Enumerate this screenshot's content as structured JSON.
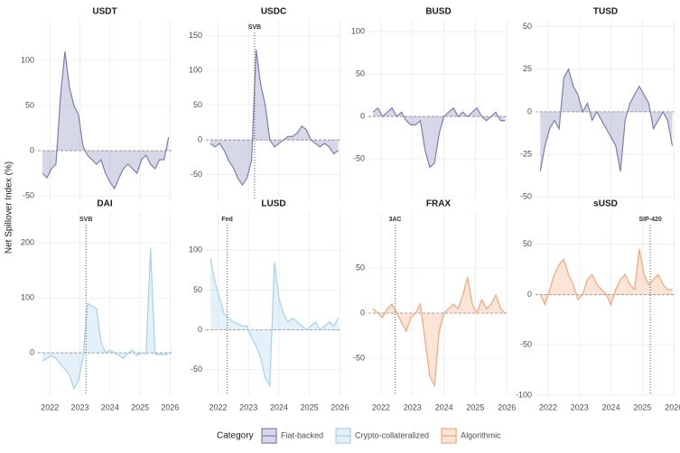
{
  "y_label": "Net Spillover Index (%)",
  "legend": {
    "title": "Category",
    "entries": [
      {
        "name": "Fiat-backed",
        "color": "#7a7fb0"
      },
      {
        "name": "Crypto-collateralized",
        "color": "#a6d2ea"
      },
      {
        "name": "Algorithmic",
        "color": "#f4a67a"
      }
    ]
  },
  "chart_data": [
    {
      "type": "line",
      "title": "USDT",
      "color": "#7a7fb0",
      "x": [
        2021.75,
        2021.9,
        2022.05,
        2022.2,
        2022.35,
        2022.5,
        2022.65,
        2022.8,
        2022.95,
        2023.1,
        2023.25,
        2023.4,
        2023.55,
        2023.7,
        2023.85,
        2024.0,
        2024.15,
        2024.3,
        2024.45,
        2024.6,
        2024.75,
        2024.9,
        2025.05,
        2025.2,
        2025.35,
        2025.5,
        2025.65,
        2025.8,
        2025.95
      ],
      "values": [
        -25,
        -30,
        -20,
        -15,
        60,
        110,
        70,
        50,
        40,
        5,
        -5,
        -10,
        -15,
        -10,
        -25,
        -35,
        -42,
        -30,
        -20,
        -15,
        -20,
        -25,
        -10,
        -5,
        -15,
        -20,
        -10,
        -10,
        15
      ],
      "xlim": [
        2021.6,
        2026.05
      ],
      "xticks": [
        2022,
        2023,
        2024,
        2025,
        2026
      ],
      "ylim": [
        -55,
        145
      ],
      "yticks": [
        -50,
        0,
        50,
        100
      ]
    },
    {
      "type": "line",
      "title": "USDC",
      "color": "#7a7fb0",
      "x": [
        2021.75,
        2021.9,
        2022.05,
        2022.2,
        2022.35,
        2022.5,
        2022.65,
        2022.8,
        2022.95,
        2023.1,
        2023.25,
        2023.4,
        2023.55,
        2023.7,
        2023.85,
        2024.0,
        2024.15,
        2024.3,
        2024.45,
        2024.6,
        2024.75,
        2024.9,
        2025.05,
        2025.2,
        2025.35,
        2025.5,
        2025.65,
        2025.8,
        2025.95
      ],
      "values": [
        -5,
        -10,
        -5,
        -15,
        -30,
        -40,
        -55,
        -65,
        -55,
        -30,
        130,
        80,
        50,
        0,
        -10,
        -5,
        0,
        5,
        5,
        10,
        20,
        15,
        0,
        -5,
        -10,
        -5,
        -10,
        -20,
        -15
      ],
      "xlim": [
        2021.6,
        2026.05
      ],
      "xticks": [
        2022,
        2023,
        2024,
        2025,
        2026
      ],
      "ylim": [
        -87,
        173
      ],
      "yticks": [
        -50,
        0,
        50,
        100,
        150
      ],
      "annotation": {
        "x": 2023.2,
        "label": "SVB"
      }
    },
    {
      "type": "line",
      "title": "BUSD",
      "color": "#7a7fb0",
      "x": [
        2021.75,
        2021.9,
        2022.05,
        2022.2,
        2022.35,
        2022.5,
        2022.65,
        2022.8,
        2022.95,
        2023.1,
        2023.25,
        2023.4,
        2023.55,
        2023.7,
        2023.85,
        2024.0,
        2024.15,
        2024.3,
        2024.45,
        2024.6,
        2024.75,
        2024.9,
        2025.05,
        2025.2,
        2025.35,
        2025.5,
        2025.65,
        2025.8,
        2025.95
      ],
      "values": [
        5,
        10,
        0,
        5,
        10,
        0,
        5,
        -5,
        -10,
        -10,
        -5,
        -40,
        -60,
        -55,
        -20,
        0,
        5,
        10,
        0,
        5,
        0,
        5,
        10,
        0,
        -5,
        0,
        5,
        -5,
        -5
      ],
      "xlim": [
        2021.6,
        2026.05
      ],
      "xticks": [
        2022,
        2023,
        2024,
        2025,
        2026
      ],
      "ylim": [
        -99,
        114
      ],
      "yticks": [
        -50,
        0,
        50,
        100
      ]
    },
    {
      "type": "line",
      "title": "TUSD",
      "color": "#7a7fb0",
      "x": [
        2021.75,
        2021.9,
        2022.05,
        2022.2,
        2022.35,
        2022.5,
        2022.65,
        2022.8,
        2022.95,
        2023.1,
        2023.25,
        2023.4,
        2023.55,
        2023.7,
        2023.85,
        2024.0,
        2024.15,
        2024.3,
        2024.45,
        2024.6,
        2024.75,
        2024.9,
        2025.05,
        2025.2,
        2025.35,
        2025.5,
        2025.65,
        2025.8,
        2025.95
      ],
      "values": [
        -35,
        -20,
        -10,
        -5,
        -10,
        20,
        25,
        15,
        10,
        0,
        5,
        -5,
        0,
        -5,
        -10,
        -15,
        -20,
        -35,
        -5,
        5,
        10,
        15,
        10,
        5,
        -10,
        -5,
        0,
        -5,
        -20
      ],
      "xlim": [
        2021.6,
        2026.05
      ],
      "xticks": [
        2022,
        2023,
        2024,
        2025,
        2026
      ],
      "ylim": [
        -52,
        54
      ],
      "yticks": [
        -50,
        -25,
        0,
        25,
        50
      ]
    },
    {
      "type": "line",
      "title": "DAI",
      "color": "#a6d2ea",
      "x": [
        2021.75,
        2021.9,
        2022.05,
        2022.2,
        2022.35,
        2022.5,
        2022.65,
        2022.8,
        2022.95,
        2023.1,
        2023.25,
        2023.4,
        2023.55,
        2023.7,
        2023.85,
        2024.0,
        2024.15,
        2024.3,
        2024.45,
        2024.6,
        2024.75,
        2024.9,
        2025.05,
        2025.2,
        2025.35,
        2025.5,
        2025.65,
        2025.8,
        2025.95
      ],
      "values": [
        -15,
        -10,
        -5,
        -10,
        -20,
        -30,
        -40,
        -65,
        -50,
        -10,
        90,
        85,
        80,
        20,
        0,
        5,
        0,
        -5,
        -10,
        0,
        5,
        -5,
        0,
        -2,
        190,
        -2,
        -3,
        -3,
        -3
      ],
      "xlim": [
        2021.6,
        2026.05
      ],
      "xticks": [
        2022,
        2023,
        2024,
        2025,
        2026
      ],
      "ylim": [
        -77,
        256
      ],
      "yticks": [
        0,
        100,
        200
      ],
      "annotation": {
        "x": 2023.2,
        "label": "SVB"
      }
    },
    {
      "type": "line",
      "title": "LUSD",
      "color": "#a6d2ea",
      "x": [
        2021.75,
        2021.9,
        2022.05,
        2022.2,
        2022.35,
        2022.5,
        2022.65,
        2022.8,
        2022.95,
        2023.1,
        2023.25,
        2023.4,
        2023.55,
        2023.7,
        2023.85,
        2024.0,
        2024.15,
        2024.3,
        2024.45,
        2024.6,
        2024.75,
        2024.9,
        2025.05,
        2025.2,
        2025.35,
        2025.5,
        2025.65,
        2025.8,
        2025.95
      ],
      "values": [
        90,
        60,
        40,
        20,
        15,
        10,
        8,
        5,
        5,
        -10,
        -20,
        -35,
        -60,
        -70,
        85,
        40,
        20,
        10,
        15,
        10,
        5,
        0,
        5,
        10,
        0,
        5,
        10,
        5,
        15
      ],
      "xlim": [
        2021.6,
        2026.05
      ],
      "xticks": [
        2022,
        2023,
        2024,
        2025,
        2026
      ],
      "ylim": [
        -82,
        148
      ],
      "yticks": [
        -50,
        0,
        50,
        100
      ],
      "annotation": {
        "x": 2022.3,
        "label": "Fed"
      }
    },
    {
      "type": "line",
      "title": "FRAX",
      "color": "#f4a67a",
      "x": [
        2021.75,
        2021.9,
        2022.05,
        2022.2,
        2022.35,
        2022.5,
        2022.65,
        2022.8,
        2022.95,
        2023.1,
        2023.25,
        2023.4,
        2023.55,
        2023.7,
        2023.85,
        2024.0,
        2024.15,
        2024.3,
        2024.45,
        2024.6,
        2024.75,
        2024.9,
        2025.05,
        2025.2,
        2025.35,
        2025.5,
        2025.65,
        2025.8,
        2025.95
      ],
      "values": [
        5,
        0,
        -5,
        5,
        10,
        0,
        -10,
        -20,
        -5,
        0,
        10,
        -30,
        -70,
        -80,
        -20,
        0,
        5,
        10,
        5,
        20,
        40,
        10,
        0,
        15,
        5,
        10,
        20,
        5,
        0
      ],
      "xlim": [
        2021.6,
        2026.05
      ],
      "xticks": [
        2022,
        2023,
        2024,
        2025,
        2026
      ],
      "ylim": [
        -91,
        112
      ],
      "yticks": [
        -50,
        0,
        50
      ],
      "annotation": {
        "x": 2022.45,
        "label": "3AC"
      }
    },
    {
      "type": "line",
      "title": "sUSD",
      "color": "#f4a67a",
      "x": [
        2021.75,
        2021.9,
        2022.05,
        2022.2,
        2022.35,
        2022.5,
        2022.65,
        2022.8,
        2022.95,
        2023.1,
        2023.25,
        2023.4,
        2023.55,
        2023.7,
        2023.85,
        2024.0,
        2024.15,
        2024.3,
        2024.45,
        2024.6,
        2024.75,
        2024.9,
        2025.05,
        2025.2,
        2025.35,
        2025.5,
        2025.65,
        2025.8,
        2025.95
      ],
      "values": [
        0,
        -10,
        5,
        20,
        30,
        35,
        20,
        10,
        -5,
        0,
        15,
        20,
        10,
        5,
        0,
        -10,
        5,
        15,
        20,
        10,
        5,
        45,
        20,
        10,
        15,
        20,
        10,
        5,
        5
      ],
      "xlim": [
        2021.6,
        2026.05
      ],
      "xticks": [
        2022,
        2023,
        2024,
        2025,
        2026
      ],
      "ylim": [
        -100,
        82
      ],
      "yticks": [
        -100,
        -50,
        0,
        50
      ],
      "annotation": {
        "x": 2025.25,
        "label": "SIP-420"
      }
    }
  ]
}
